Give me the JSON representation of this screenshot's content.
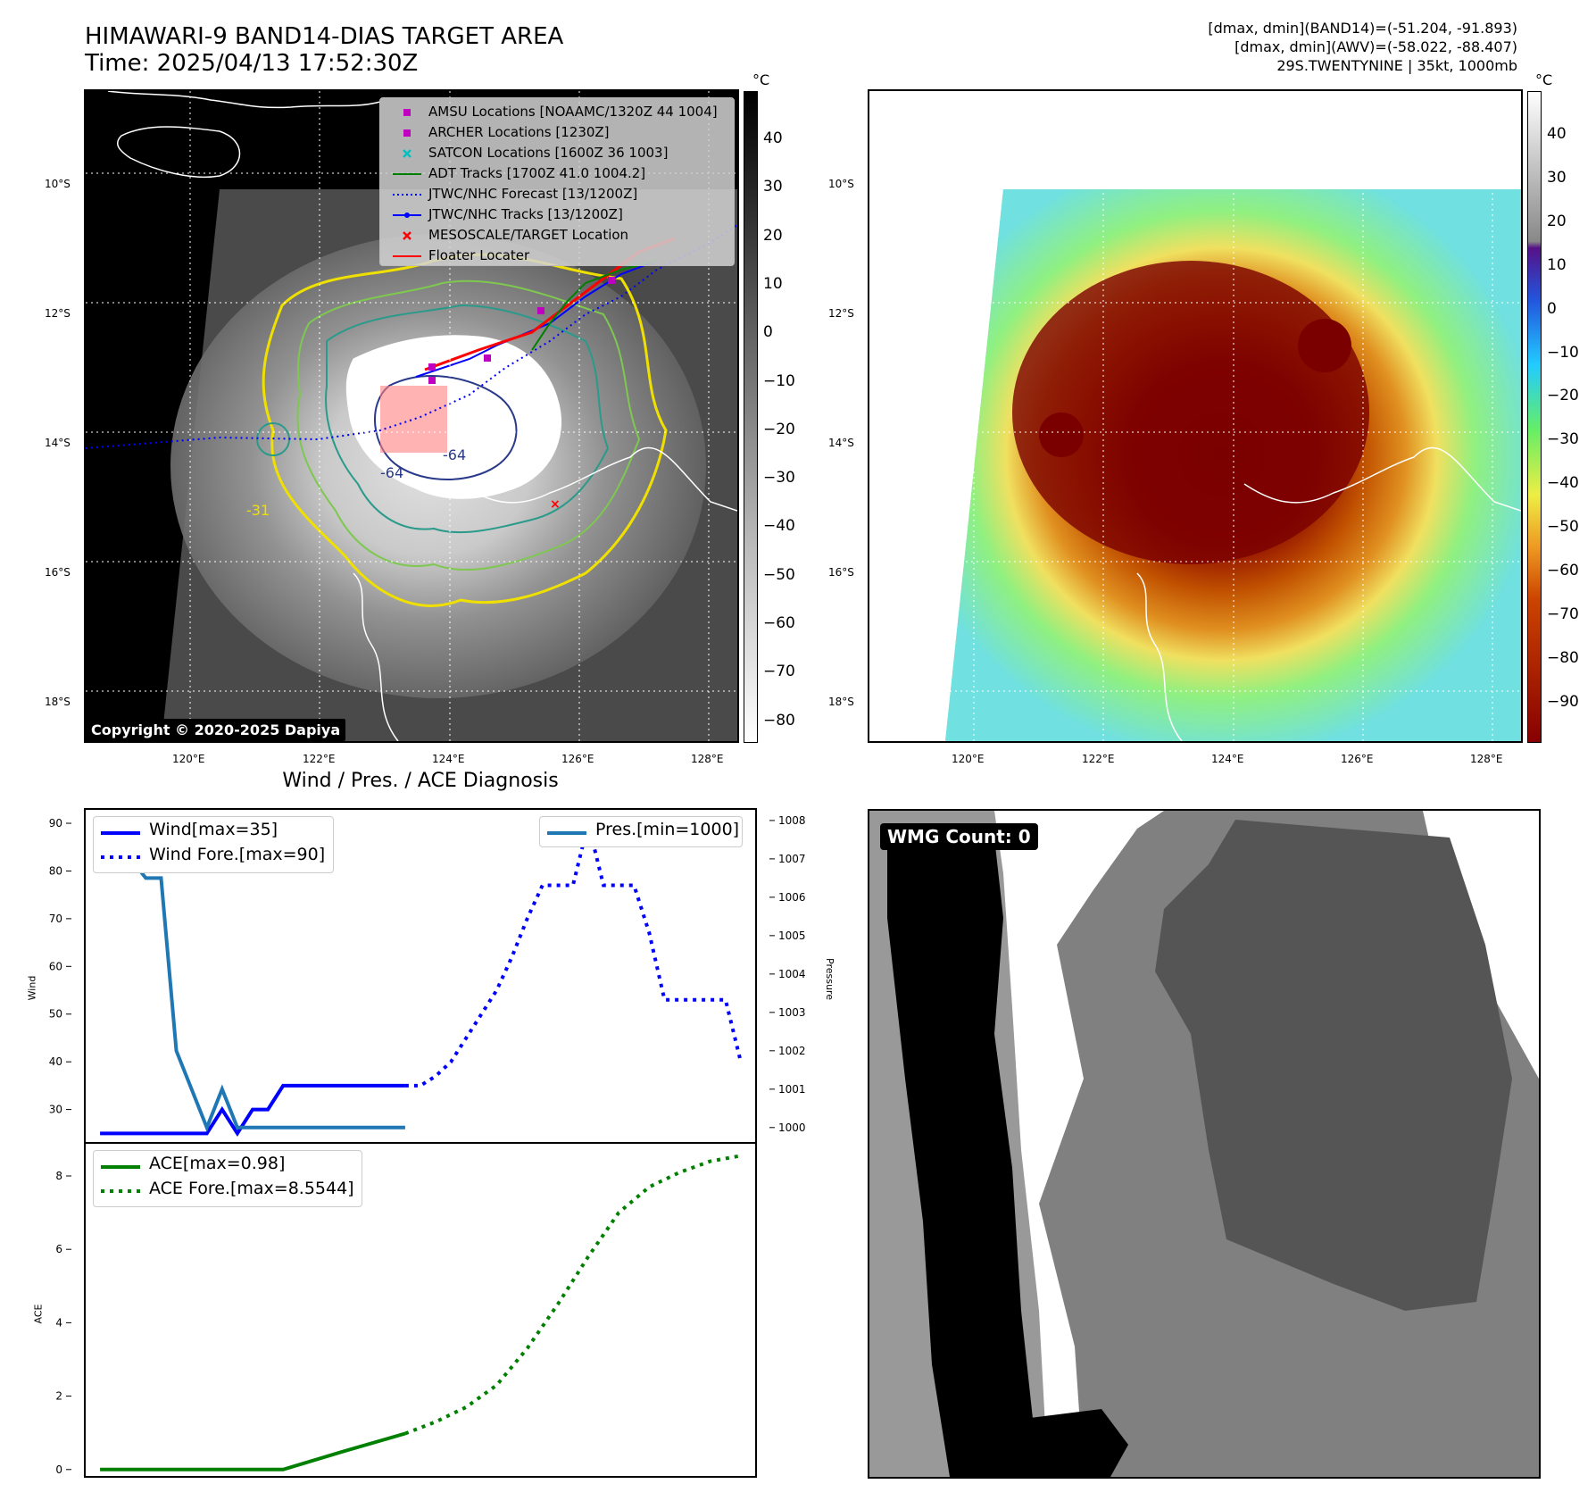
{
  "header": {
    "title": "HIMAWARI-9 BAND14-DIAS TARGET AREA",
    "time": "Time: 2025/04/13 17:52:30Z",
    "info_line1": "[dmax, dmin](BAND14)=(-51.204, -91.893)",
    "info_line2": "[dmax, dmin](AWV)=(-58.022, -88.407)",
    "info_line3": "29S.TWENTYNINE | 35kt, 1000mb"
  },
  "map_left": {
    "copyright": "Copyright © 2020-2025 Dapiya",
    "lat_labels": [
      "10°S",
      "12°S",
      "14°S",
      "16°S",
      "18°S"
    ],
    "lon_labels": [
      "120°E",
      "122°E",
      "124°E",
      "126°E",
      "128°E"
    ],
    "contour_labels": [
      "-64",
      "-64",
      "-31"
    ],
    "legend": [
      {
        "label": "AMSU Locations [NOAAMC/1320Z 44 1004]",
        "color": "#c000c0",
        "marker": "square"
      },
      {
        "label": "ARCHER Locations [1230Z]",
        "color": "#c000c0",
        "marker": "square"
      },
      {
        "label": "SATCON Locations [1600Z 36 1003]",
        "color": "#00c0c0",
        "marker": "x"
      },
      {
        "label": "ADT Tracks [1700Z 41.0 1004.2]",
        "color": "#008000",
        "marker": "line"
      },
      {
        "label": "JTWC/NHC Forecast [13/1200Z]",
        "color": "#0000ff",
        "marker": "dotted"
      },
      {
        "label": "JTWC/NHC Tracks [13/1200Z]",
        "color": "#0000ff",
        "marker": "line-dot"
      },
      {
        "label": "MESOSCALE/TARGET Location",
        "color": "#ff0000",
        "marker": "x"
      },
      {
        "label": "Floater Locater",
        "color": "#ff0000",
        "marker": "line"
      }
    ],
    "colorbar": {
      "unit": "°C",
      "ticks": [
        "40",
        "30",
        "20",
        "10",
        "0",
        "−10",
        "−20",
        "−30",
        "−40",
        "−50",
        "−60",
        "−70",
        "−80"
      ]
    }
  },
  "map_right": {
    "lat_labels": [
      "10°S",
      "12°S",
      "14°S",
      "16°S",
      "18°S"
    ],
    "lon_labels": [
      "120°E",
      "122°E",
      "124°E",
      "126°E",
      "128°E"
    ],
    "colorbar": {
      "unit": "°C",
      "ticks": [
        "40",
        "30",
        "20",
        "10",
        "0",
        "−10",
        "−20",
        "−30",
        "−40",
        "−50",
        "−60",
        "−70",
        "−80",
        "−90"
      ]
    }
  },
  "diagnosis": {
    "title": "Wind / Pres. / ACE Diagnosis"
  },
  "wmg": {
    "label": "WMG Count: 0"
  },
  "chart_data": [
    {
      "type": "line",
      "title": "Wind / Pres. / ACE Diagnosis",
      "ylabel": "Wind",
      "y2label": "Pressure",
      "ylim": [
        23,
        93
      ],
      "y2lim": [
        999.6,
        1008.3
      ],
      "yticks": [
        30,
        40,
        50,
        60,
        70,
        80,
        90
      ],
      "y2ticks": [
        1000,
        1001,
        1002,
        1003,
        1004,
        1005,
        1006,
        1007,
        1008
      ],
      "series": [
        {
          "name": "Wind[max=35]",
          "color": "#0000ff",
          "style": "solid",
          "axis": "left",
          "x": [
            0,
            1,
            2,
            3,
            4,
            5,
            6,
            7,
            8,
            9,
            10,
            11,
            12,
            13,
            14,
            15,
            16,
            17,
            18,
            19,
            20
          ],
          "values": [
            25,
            25,
            25,
            25,
            25,
            25,
            25,
            25,
            30,
            25,
            30,
            30,
            35,
            35,
            35,
            35,
            35,
            35,
            35,
            35,
            35
          ]
        },
        {
          "name": "Wind Fore.[max=90]",
          "color": "#0000ff",
          "style": "dotted",
          "axis": "left",
          "x": [
            20,
            21,
            22,
            23,
            24,
            25,
            26,
            27,
            28,
            29,
            30,
            31,
            32,
            33,
            34,
            35,
            36,
            37,
            38,
            39,
            40,
            41,
            42
          ],
          "values": [
            35,
            35,
            37,
            40,
            45,
            50,
            55,
            62,
            70,
            77,
            77,
            77,
            90,
            77,
            77,
            77,
            67,
            53,
            53,
            53,
            53,
            53,
            40
          ]
        },
        {
          "name": "Pres.[min=1000]",
          "color": "#1f77b4",
          "style": "solid",
          "axis": "right",
          "x": [
            0,
            1,
            2,
            3,
            4,
            5,
            6,
            7,
            8,
            9,
            10,
            11,
            12,
            13,
            14,
            15,
            16,
            17,
            18,
            19,
            20
          ],
          "values": [
            1008,
            1007,
            1007,
            1006.5,
            1006.5,
            1002,
            1001,
            1000,
            1001,
            1000,
            1000,
            1000,
            1000,
            1000,
            1000,
            1000,
            1000,
            1000,
            1000,
            1000,
            1000
          ]
        }
      ]
    },
    {
      "type": "line",
      "ylabel": "ACE",
      "ylim": [
        -0.2,
        8.9
      ],
      "yticks": [
        0,
        2,
        4,
        6,
        8
      ],
      "series": [
        {
          "name": "ACE[max=0.98]",
          "color": "#008000",
          "style": "solid",
          "x": [
            0,
            4,
            8,
            12,
            16,
            20
          ],
          "values": [
            0,
            0,
            0,
            0,
            0.5,
            0.98
          ]
        },
        {
          "name": "ACE Fore.[max=8.5544]",
          "color": "#008000",
          "style": "dotted",
          "x": [
            20,
            22,
            24,
            26,
            28,
            30,
            32,
            34,
            36,
            38,
            40,
            42
          ],
          "values": [
            0.98,
            1.3,
            1.7,
            2.3,
            3.3,
            4.5,
            5.8,
            7.0,
            7.7,
            8.1,
            8.4,
            8.55
          ]
        }
      ]
    }
  ]
}
